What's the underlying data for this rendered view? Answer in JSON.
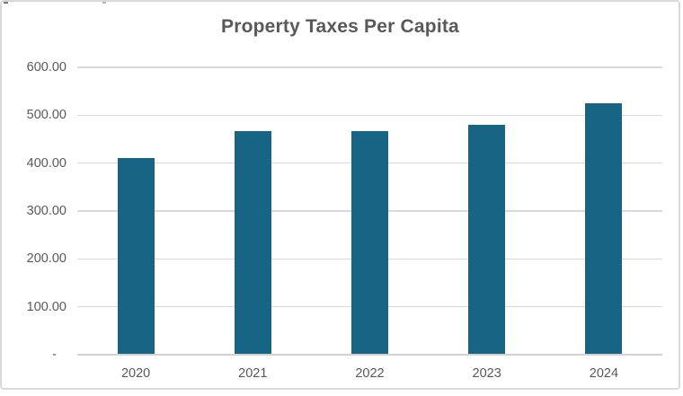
{
  "chart_data": {
    "type": "bar",
    "title": "Property Taxes Per Capita",
    "categories": [
      "2020",
      "2021",
      "2022",
      "2023",
      "2024"
    ],
    "values": [
      411,
      467,
      467,
      480,
      525
    ],
    "y_tick_labels": [
      "600.00",
      "500.00",
      "400.00",
      "300.00",
      "200.00",
      "100.00",
      "-"
    ],
    "ylim": [
      0,
      600
    ],
    "y_step": 100,
    "xlabel": "",
    "ylabel": "",
    "grid": true,
    "legend": "none",
    "bar_color": "#176485",
    "text_color": "#595959",
    "grid_color": "#d9d9d9"
  }
}
